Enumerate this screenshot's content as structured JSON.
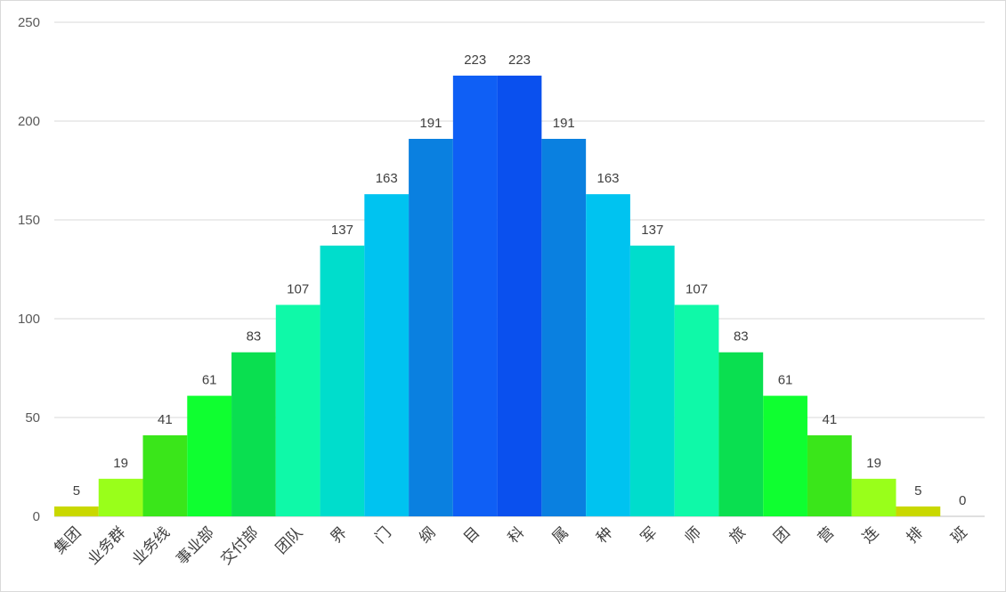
{
  "chart_data": {
    "type": "bar",
    "title": "",
    "xlabel": "",
    "ylabel": "",
    "ylim": [
      0,
      250
    ],
    "yticks": [
      0,
      50,
      100,
      150,
      200,
      250
    ],
    "grid": true,
    "legend": "none",
    "categories": [
      "集团",
      "业务群",
      "业务线",
      "事业部",
      "交付部",
      "团队",
      "界",
      "门",
      "纲",
      "目",
      "科",
      "属",
      "种",
      "军",
      "师",
      "旅",
      "团",
      "营",
      "连",
      "排",
      "班"
    ],
    "values": [
      5,
      19,
      41,
      61,
      83,
      107,
      137,
      163,
      191,
      223,
      223,
      191,
      163,
      137,
      107,
      83,
      61,
      41,
      19,
      5,
      0
    ],
    "colors": [
      "#c9d800",
      "#99ff1a",
      "#3ae61a",
      "#0fff30",
      "#0adf50",
      "#0ff9a8",
      "#00ddcc",
      "#00c3f0",
      "#0a80e0",
      "#0f5ff5",
      "#0a50ee",
      "#0a80e0",
      "#00c3f0",
      "#00ddcc",
      "#0ff9a8",
      "#0adf50",
      "#0fff30",
      "#3ae61a",
      "#99ff1a",
      "#c9d800",
      "#c9d800"
    ]
  }
}
